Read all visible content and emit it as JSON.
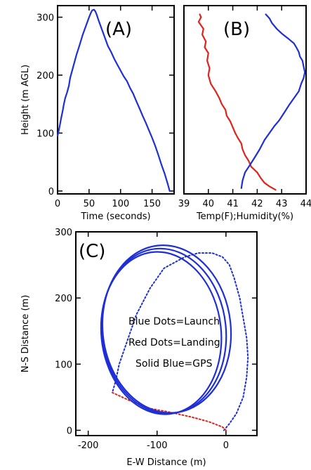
{
  "colors": {
    "blue": "#1f2fd6",
    "red": "#e0231c"
  },
  "chart_data": [
    {
      "type": "line",
      "panel_label": "(A)",
      "xlabel": "Time (seconds)",
      "ylabel": "Height (m AGL)",
      "xlim": [
        0,
        185
      ],
      "ylim": [
        -5,
        320
      ],
      "xticks": [
        0,
        50,
        100,
        150
      ],
      "yticks": [
        0,
        100,
        200,
        300
      ],
      "series": [
        {
          "color": "#1f2fd6",
          "style": "solid",
          "x": [
            0,
            1,
            3,
            5,
            8,
            10,
            12,
            15,
            18,
            20,
            25,
            30,
            35,
            40,
            45,
            50,
            53,
            55,
            58,
            60,
            62,
            65,
            70,
            75,
            80,
            85,
            90,
            95,
            100,
            105,
            110,
            115,
            120,
            125,
            130,
            135,
            140,
            145,
            150,
            155,
            160,
            165,
            170,
            175,
            178
          ],
          "y": [
            95,
            100,
            110,
            122,
            138,
            150,
            160,
            170,
            182,
            195,
            215,
            235,
            252,
            270,
            285,
            300,
            308,
            312,
            313,
            310,
            305,
            295,
            280,
            265,
            250,
            240,
            228,
            218,
            208,
            198,
            190,
            178,
            168,
            155,
            143,
            130,
            118,
            105,
            92,
            78,
            62,
            45,
            30,
            12,
            0
          ]
        }
      ]
    },
    {
      "type": "line",
      "panel_label": "(B)",
      "xlabel": "Temp(F);Humidity(%)",
      "xlim": [
        39,
        44
      ],
      "ylim": [
        -5,
        320
      ],
      "xticks": [
        39,
        40,
        41,
        42,
        43,
        44
      ],
      "series": [
        {
          "color": "#e0231c",
          "style": "solid",
          "x": [
            39.65,
            39.7,
            39.6,
            39.8,
            39.75,
            39.9,
            39.85,
            40.0,
            39.95,
            40.05,
            40.0,
            40.1,
            40.3,
            40.45,
            40.55,
            40.7,
            40.75,
            40.9,
            41.0,
            41.1,
            41.2,
            41.35,
            41.4,
            41.5,
            41.65,
            41.75,
            42.0,
            42.15,
            42.3,
            42.5,
            42.75
          ],
          "y": [
            305,
            300,
            292,
            280,
            270,
            258,
            248,
            238,
            225,
            212,
            200,
            185,
            172,
            160,
            150,
            140,
            130,
            120,
            110,
            100,
            92,
            82,
            72,
            62,
            52,
            42,
            32,
            22,
            14,
            8,
            2
          ]
        },
        {
          "color": "#1f2fd6",
          "style": "solid",
          "x": [
            42.35,
            42.5,
            42.6,
            42.8,
            43.0,
            43.3,
            43.5,
            43.6,
            43.7,
            43.75,
            43.85,
            43.9,
            43.95,
            43.9,
            43.8,
            43.7,
            43.5,
            43.3,
            43.1,
            42.9,
            42.7,
            42.5,
            42.3,
            42.1,
            41.9,
            41.7,
            41.5,
            41.4,
            41.35
          ],
          "y": [
            305,
            298,
            290,
            280,
            272,
            262,
            255,
            248,
            240,
            232,
            225,
            215,
            205,
            195,
            185,
            172,
            160,
            148,
            135,
            122,
            112,
            100,
            88,
            72,
            58,
            45,
            32,
            18,
            5
          ]
        }
      ]
    },
    {
      "type": "line",
      "panel_label": "(C)",
      "xlabel": "E-W Distance (m)",
      "ylabel": "N-S Distance (m)",
      "xlim": [
        -218,
        45
      ],
      "ylim": [
        -8,
        300
      ],
      "xticks": [
        -200,
        -100,
        0
      ],
      "yticks": [
        0,
        100,
        200,
        300
      ],
      "annotations": [
        "Blue Dots=Launch",
        "Red Dots=Landing",
        "Solid Blue=GPS"
      ],
      "series": [
        {
          "color": "#1f2fd6",
          "style": "dotted",
          "x": [
            -3,
            5,
            15,
            25,
            30,
            32,
            30,
            25,
            20,
            12,
            5,
            -5,
            -20,
            -40,
            -60,
            -90,
            -110,
            -130,
            -145,
            -155,
            -160,
            -165
          ],
          "y": [
            0,
            10,
            25,
            50,
            80,
            110,
            140,
            170,
            200,
            230,
            250,
            262,
            268,
            268,
            262,
            245,
            215,
            175,
            130,
            100,
            75,
            57
          ]
        },
        {
          "color": "#e0231c",
          "style": "dotted",
          "x": [
            -165,
            -140,
            -110,
            -80,
            -50,
            -25,
            -5,
            0
          ],
          "y": [
            57,
            45,
            33,
            27,
            20,
            13,
            5,
            0
          ]
        }
      ],
      "gps_loop": {
        "color": "#1f2fd6",
        "center": [
          -90,
          150
        ],
        "rx_m": 90,
        "ry_m": 125,
        "turns": 3
      }
    }
  ]
}
